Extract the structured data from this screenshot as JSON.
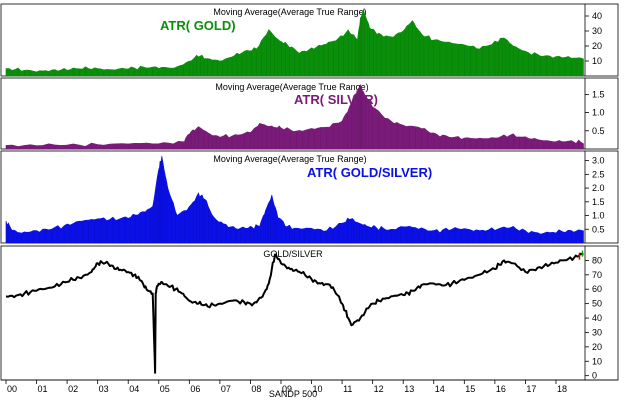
{
  "colors": {
    "background": "#ffffff",
    "gold": "#0a8f0a",
    "silver": "#7a1b7a",
    "ratio": "#0a10e6",
    "line": "#000000",
    "grid": "#000000",
    "last_bar_up": "#00aa00",
    "last_bar_down": "#dd0000"
  },
  "chart_data": [
    {
      "type": "area",
      "title": "Moving Average(Average True Range)",
      "badge": "ATR( GOLD)",
      "color_key": "gold",
      "ylim": [
        0,
        48
      ],
      "yticks": [
        10,
        20,
        30,
        40
      ],
      "tick_labels": [
        "10",
        "20",
        "30",
        "40"
      ],
      "x": [
        2000.0,
        2000.5,
        2001.0,
        2001.5,
        2002.0,
        2002.5,
        2003.0,
        2003.5,
        2004.0,
        2004.5,
        2005.0,
        2005.5,
        2006.0,
        2006.3,
        2006.6,
        2007.0,
        2007.4,
        2007.8,
        2008.2,
        2008.6,
        2008.9,
        2009.2,
        2009.6,
        2010.0,
        2010.4,
        2010.8,
        2011.2,
        2011.5,
        2011.6,
        2011.7,
        2011.9,
        2012.2,
        2012.6,
        2013.0,
        2013.3,
        2013.6,
        2014.0,
        2014.5,
        2015.0,
        2015.5,
        2016.0,
        2016.3,
        2016.6,
        2017.0,
        2017.5,
        2018.0,
        2018.5,
        2018.9
      ],
      "values": [
        5,
        4,
        3,
        4,
        4,
        5,
        5,
        4,
        5,
        6,
        6,
        5,
        10,
        14,
        11,
        10,
        13,
        16,
        18,
        31,
        24,
        21,
        16,
        18,
        21,
        24,
        30,
        24,
        38,
        44,
        32,
        28,
        26,
        30,
        37,
        28,
        24,
        22,
        21,
        18,
        22,
        26,
        20,
        16,
        14,
        13,
        12,
        12
      ]
    },
    {
      "type": "area",
      "title": "Moving Average(Average True Range)",
      "badge": "ATR( SILVER)",
      "color_key": "silver",
      "ylim": [
        0,
        1.95
      ],
      "yticks": [
        0.5,
        1.0,
        1.5
      ],
      "tick_labels": [
        "0.5",
        "1.0",
        "1.5"
      ],
      "x": [
        2000.0,
        2001.0,
        2002.0,
        2003.0,
        2004.0,
        2005.0,
        2005.8,
        2006.0,
        2006.3,
        2006.7,
        2007.0,
        2007.5,
        2008.0,
        2008.3,
        2008.7,
        2009.0,
        2009.5,
        2010.0,
        2010.5,
        2011.0,
        2011.3,
        2011.5,
        2011.6,
        2011.7,
        2012.0,
        2012.5,
        2013.0,
        2013.5,
        2014.0,
        2014.5,
        2015.0,
        2015.5,
        2016.0,
        2016.5,
        2017.0,
        2017.5,
        2018.0,
        2018.5,
        2018.9
      ],
      "values": [
        0.1,
        0.1,
        0.1,
        0.12,
        0.16,
        0.14,
        0.2,
        0.45,
        0.6,
        0.4,
        0.35,
        0.36,
        0.45,
        0.7,
        0.6,
        0.58,
        0.5,
        0.55,
        0.6,
        0.78,
        1.25,
        1.6,
        1.75,
        1.55,
        1.15,
        0.8,
        0.65,
        0.6,
        0.42,
        0.35,
        0.3,
        0.28,
        0.32,
        0.38,
        0.3,
        0.25,
        0.2,
        0.2,
        0.18
      ]
    },
    {
      "type": "area",
      "title": "Moving Average(Average True Range)",
      "badge": "ATR( GOLD/SILVER)",
      "color_key": "ratio",
      "ylim": [
        0,
        3.35
      ],
      "yticks": [
        0.5,
        1.0,
        1.5,
        2.0,
        2.5,
        3.0
      ],
      "tick_labels": [
        "0.5",
        "1.0",
        "1.5",
        "2.0",
        "2.5",
        "3.0"
      ],
      "x": [
        2000.0,
        2000.2,
        2000.5,
        2001.0,
        2001.5,
        2002.0,
        2002.5,
        2003.0,
        2003.5,
        2004.0,
        2004.4,
        2004.8,
        2005.0,
        2005.1,
        2005.3,
        2005.6,
        2006.0,
        2006.3,
        2006.5,
        2006.8,
        2007.2,
        2007.6,
        2008.0,
        2008.3,
        2008.5,
        2008.7,
        2008.9,
        2009.2,
        2009.6,
        2010.0,
        2010.5,
        2011.0,
        2011.3,
        2011.5,
        2011.8,
        2012.2,
        2012.6,
        2013.0,
        2013.5,
        2014.0,
        2014.5,
        2015.0,
        2015.5,
        2016.0,
        2016.5,
        2017.0,
        2017.5,
        2018.0,
        2018.5,
        2018.9
      ],
      "values": [
        0.8,
        0.5,
        0.35,
        0.45,
        0.55,
        0.65,
        0.8,
        0.9,
        0.85,
        0.9,
        1.1,
        1.3,
        2.7,
        3.15,
        2.0,
        1.0,
        1.3,
        1.8,
        1.6,
        0.9,
        0.65,
        0.5,
        0.55,
        0.65,
        1.2,
        1.7,
        1.0,
        0.6,
        0.5,
        0.55,
        0.45,
        0.7,
        0.9,
        0.75,
        0.6,
        0.55,
        0.5,
        0.6,
        0.55,
        0.45,
        0.5,
        0.5,
        0.45,
        0.5,
        0.55,
        0.45,
        0.35,
        0.4,
        0.45,
        0.5
      ]
    },
    {
      "type": "line",
      "title": "GOLD/SILVER",
      "color_key": "line",
      "ylim": [
        -3,
        90
      ],
      "yticks": [
        0,
        10,
        20,
        30,
        40,
        50,
        60,
        70,
        80
      ],
      "tick_labels": [
        "0",
        "10",
        "20",
        "30",
        "40",
        "50",
        "60",
        "70",
        "80"
      ],
      "x": [
        2000.0,
        2000.4,
        2000.8,
        2001.2,
        2001.6,
        2002.0,
        2002.4,
        2002.8,
        2003.0,
        2003.3,
        2003.6,
        2003.9,
        2004.2,
        2004.4,
        2004.6,
        2004.8,
        2004.88,
        2004.9,
        2004.94,
        2005.1,
        2005.4,
        2005.7,
        2006.0,
        2006.3,
        2006.6,
        2007.0,
        2007.4,
        2007.8,
        2008.1,
        2008.4,
        2008.6,
        2008.8,
        2009.0,
        2009.3,
        2009.6,
        2010.0,
        2010.3,
        2010.6,
        2010.9,
        2011.1,
        2011.3,
        2011.6,
        2011.9,
        2012.2,
        2012.6,
        2013.0,
        2013.3,
        2013.6,
        2014.0,
        2014.4,
        2014.8,
        2015.2,
        2015.6,
        2016.0,
        2016.3,
        2016.6,
        2017.0,
        2017.4,
        2017.8,
        2018.2,
        2018.6,
        2018.9
      ],
      "values": [
        55,
        56,
        58,
        60,
        62,
        65,
        68,
        72,
        78,
        79,
        74,
        73,
        70,
        66,
        60,
        57,
        2,
        57,
        62,
        65,
        62,
        58,
        52,
        50,
        48,
        50,
        52,
        51,
        50,
        55,
        64,
        84,
        78,
        74,
        72,
        67,
        64,
        63,
        55,
        45,
        35,
        40,
        48,
        52,
        55,
        56,
        59,
        63,
        64,
        63,
        65,
        68,
        71,
        74,
        80,
        78,
        72,
        75,
        77,
        80,
        82,
        84
      ]
    }
  ],
  "x_axis": {
    "tick_years": [
      2000,
      2001,
      2002,
      2003,
      2004,
      2005,
      2006,
      2007,
      2008,
      2009,
      2010,
      2011,
      2012,
      2013,
      2014,
      2015,
      2016,
      2017,
      2018
    ],
    "tick_labels": [
      "00",
      "01",
      "02",
      "03",
      "04",
      "05",
      "06",
      "07",
      "08",
      "09",
      "10",
      "11",
      "12",
      "13",
      "14",
      "15",
      "16",
      "17",
      "18"
    ],
    "label": "SANDP 500"
  }
}
